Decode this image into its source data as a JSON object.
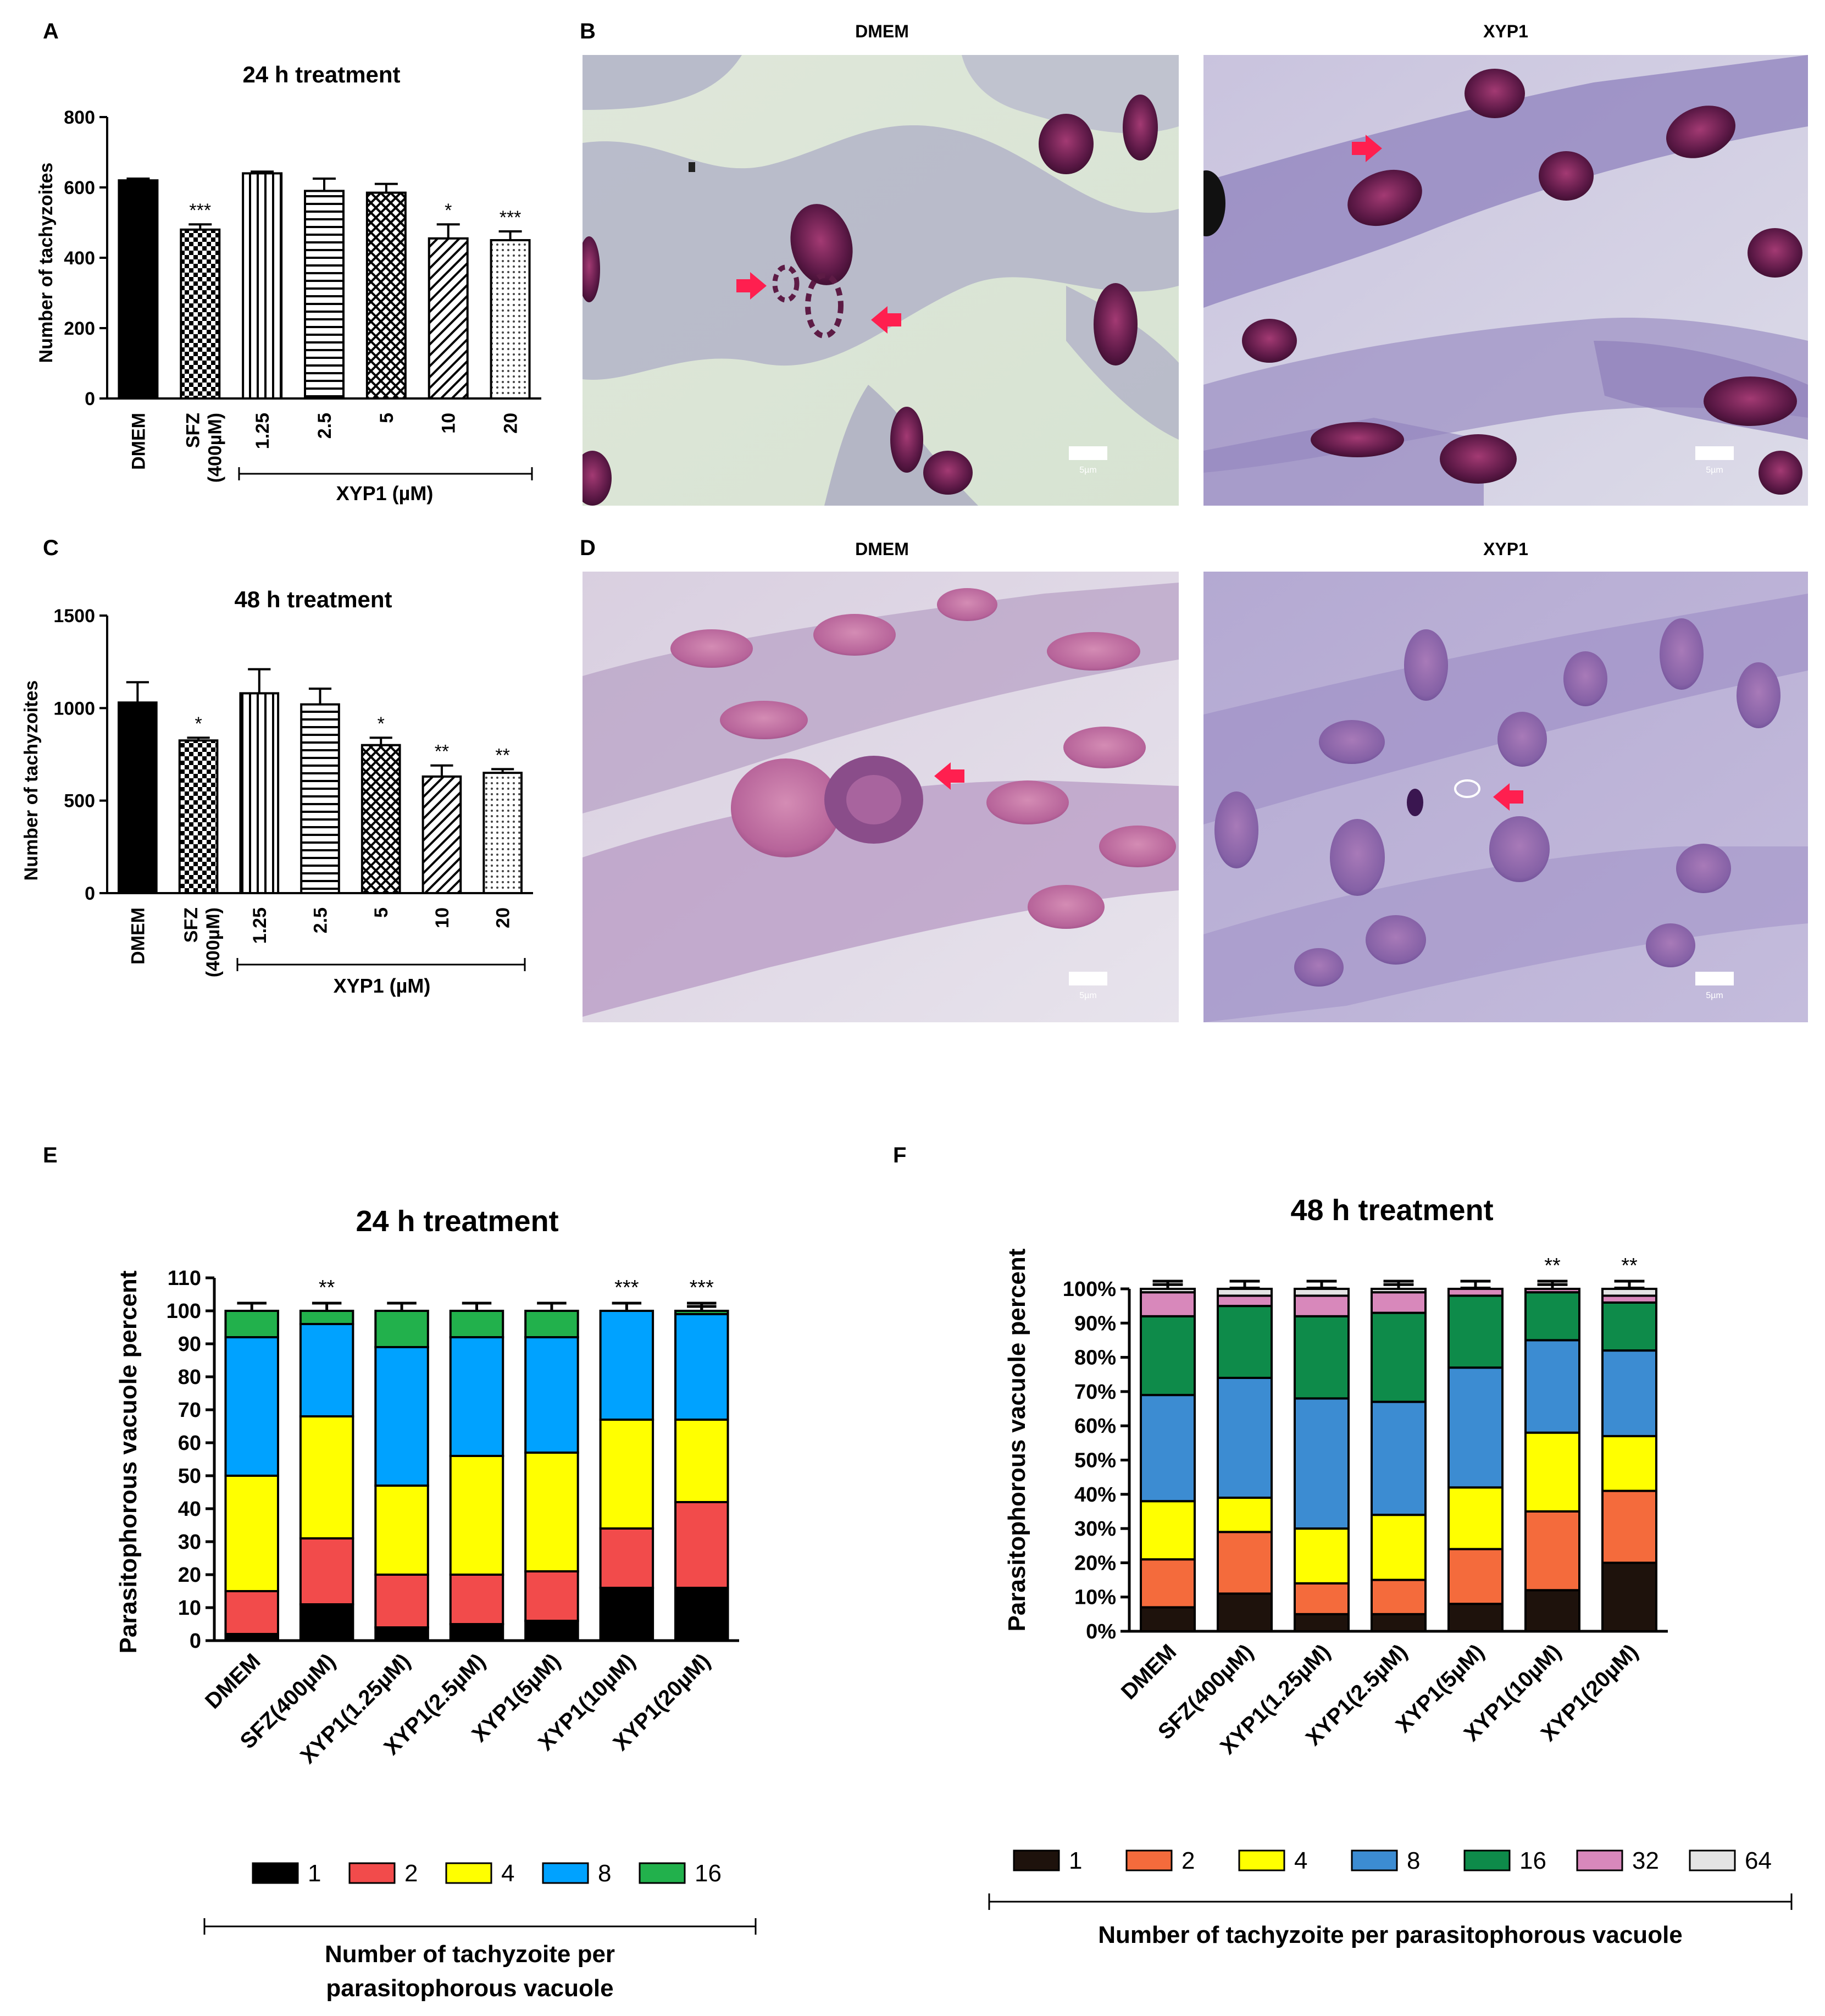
{
  "panels": {
    "A": {
      "letter": "A",
      "title": "24 h treatment",
      "ylabel": "Number of tachyzoites",
      "group_label": "XYP1 (µM)",
      "chart_data": {
        "type": "bar",
        "categories": [
          "DMEM",
          "SFZ (400µM)",
          "1.25",
          "2.5",
          "5",
          "10",
          "20"
        ],
        "values": [
          620,
          480,
          640,
          590,
          585,
          455,
          450
        ],
        "errors": [
          5,
          15,
          5,
          35,
          25,
          40,
          25
        ],
        "significance": [
          "",
          "***",
          "",
          "",
          "",
          "*",
          "***"
        ],
        "yticks": [
          0,
          200,
          400,
          600,
          800
        ],
        "ylim": [
          0,
          800
        ],
        "ylabel": "Number of tachyzoites",
        "title": "24 h treatment"
      }
    },
    "B": {
      "letter": "B",
      "images": [
        {
          "label": "DMEM",
          "scale": "5µm"
        },
        {
          "label": "XYP1",
          "scale": "5µm"
        }
      ]
    },
    "C": {
      "letter": "C",
      "title": "48 h treatment",
      "ylabel": "Number of tachyzoites",
      "group_label": "XYP1 (µM)",
      "chart_data": {
        "type": "bar",
        "categories": [
          "DMEM",
          "SFZ (400µM)",
          "1.25",
          "2.5",
          "5",
          "10",
          "20"
        ],
        "values": [
          1030,
          825,
          1080,
          1020,
          800,
          630,
          650
        ],
        "errors": [
          110,
          15,
          130,
          85,
          40,
          60,
          20
        ],
        "significance": [
          "",
          "*",
          "",
          "",
          "*",
          "**",
          "**"
        ],
        "yticks": [
          0,
          500,
          1000,
          1500
        ],
        "ylim": [
          0,
          1500
        ],
        "ylabel": "Number of tachyzoites",
        "title": "48 h treatment"
      }
    },
    "D": {
      "letter": "D",
      "images": [
        {
          "label": "DMEM",
          "scale": "5µm"
        },
        {
          "label": "XYP1",
          "scale": "5µm"
        }
      ]
    },
    "E": {
      "letter": "E",
      "title": "24 h treatment",
      "ylabel": "Parasitophorous vacuole percent",
      "legend_title_line1": "Number of tachyzoite per",
      "legend_title_line2": "parasitophorous vacuole",
      "chart_data": {
        "type": "bar",
        "stacked": true,
        "categories": [
          "DMEM",
          "SFZ(400µM)",
          "XYP1(1.25µM)",
          "XYP1(2.5µM)",
          "XYP1(5µM)",
          "XYP1(10µM)",
          "XYP1(20µM)"
        ],
        "series": [
          {
            "name": "1",
            "color": "#000000",
            "values": [
              2,
              11,
              4,
              5,
              6,
              16,
              16
            ]
          },
          {
            "name": "2",
            "color": "#f24b4b",
            "values": [
              13,
              20,
              16,
              15,
              15,
              18,
              26
            ]
          },
          {
            "name": "4",
            "color": "#ffff00",
            "values": [
              35,
              37,
              27,
              36,
              36,
              33,
              25
            ]
          },
          {
            "name": "8",
            "color": "#00a2ff",
            "values": [
              42,
              28,
              42,
              36,
              35,
              33,
              32
            ]
          },
          {
            "name": "16",
            "color": "#22b14c",
            "values": [
              8,
              4,
              11,
              8,
              8,
              0,
              1
            ]
          }
        ],
        "significance": [
          "",
          "**",
          "",
          "",
          "",
          "***",
          "***"
        ],
        "yticks": [
          0,
          10,
          20,
          30,
          40,
          50,
          60,
          70,
          80,
          90,
          100,
          110
        ],
        "ylim": [
          0,
          110
        ],
        "ylabel": "Parasitophorous vacuole percent",
        "title": "24 h treatment",
        "legend_position": "bottom"
      }
    },
    "F": {
      "letter": "F",
      "title": "48 h treatment",
      "ylabel": "Parasitophorous vacuole percent",
      "legend_title": "Number of tachyzoite per parasitophorous vacuole",
      "chart_data": {
        "type": "bar",
        "stacked": true,
        "categories": [
          "DMEM",
          "SFZ(400µM)",
          "XYP1(1.25µM)",
          "XYP1(2.5µM)",
          "XYP1(5µM)",
          "XYP1(10µM)",
          "XYP1(20µM)"
        ],
        "series": [
          {
            "name": "1",
            "color": "#1e120c",
            "values": [
              7,
              11,
              5,
              5,
              8,
              12,
              20
            ]
          },
          {
            "name": "2",
            "color": "#f46b3c",
            "values": [
              14,
              18,
              9,
              10,
              16,
              23,
              21
            ]
          },
          {
            "name": "4",
            "color": "#ffff00",
            "values": [
              17,
              10,
              16,
              19,
              18,
              23,
              16
            ]
          },
          {
            "name": "8",
            "color": "#3c8cd2",
            "values": [
              31,
              35,
              38,
              33,
              35,
              27,
              25
            ]
          },
          {
            "name": "16",
            "color": "#0e8b4a",
            "values": [
              23,
              21,
              24,
              26,
              21,
              14,
              14
            ]
          },
          {
            "name": "32",
            "color": "#d888bb",
            "values": [
              7,
              3,
              6,
              6,
              2,
              1,
              2
            ]
          },
          {
            "name": "64",
            "color": "#e4e4e4",
            "values": [
              1,
              2,
              2,
              1,
              0,
              0,
              2
            ]
          }
        ],
        "significance": [
          "",
          "",
          "",
          "",
          "",
          "**",
          "**"
        ],
        "yticks": [
          "0%",
          "10%",
          "20%",
          "30%",
          "40%",
          "50%",
          "60%",
          "70%",
          "80%",
          "90%",
          "100%"
        ],
        "ylim": [
          0,
          100
        ],
        "ylabel": "Parasitophorous vacuole percent",
        "title": "48 h treatment",
        "legend_position": "bottom"
      }
    }
  }
}
